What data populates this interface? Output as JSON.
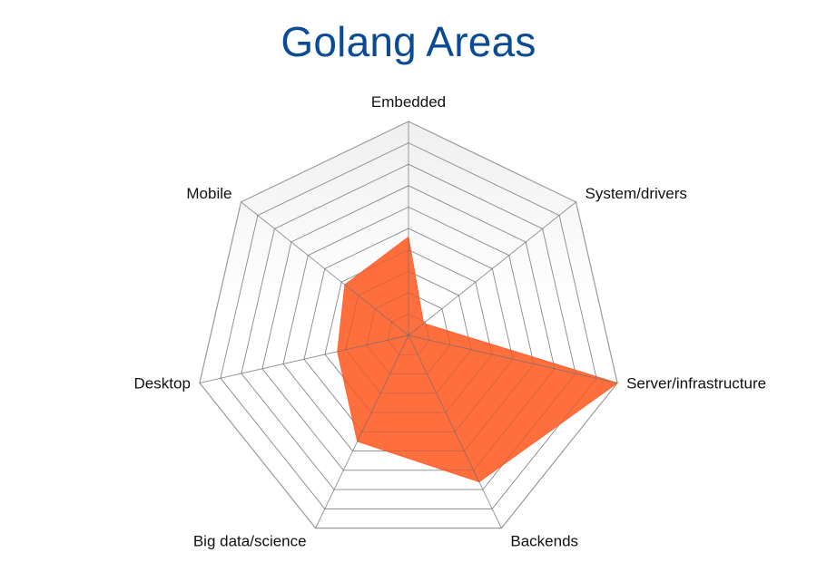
{
  "chart_data": {
    "type": "radar",
    "title": "Golang Areas",
    "categories": [
      "Embedded",
      "System/drivers",
      "Server/infrastructure",
      "Backends",
      "Big data/science",
      "Desktop",
      "Mobile"
    ],
    "series": [
      {
        "values": [
          4.6,
          0.9,
          10.0,
          7.6,
          5.5,
          3.4,
          3.8
        ]
      }
    ],
    "rlim": [
      0,
      10
    ],
    "rings": 10,
    "grid": true,
    "legend": "none",
    "colors": {
      "fill": "#ff6633",
      "grid": "#9a9a9a",
      "background_top": "#efefef",
      "background_bottom": "#ffffff",
      "title": "#0b4a95"
    }
  }
}
